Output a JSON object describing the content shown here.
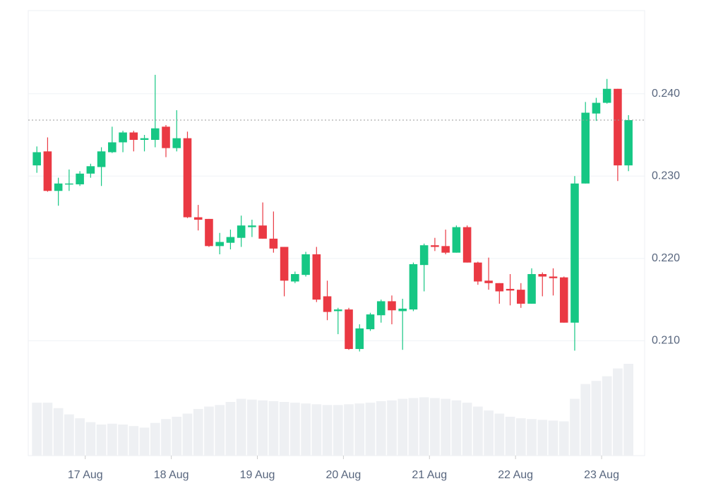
{
  "chart_data": {
    "type": "candlestick",
    "open": [
      0.2313,
      0.233,
      0.2282,
      0.229,
      0.229,
      0.2303,
      0.2311,
      0.2329,
      0.2341,
      0.2353,
      0.2344,
      0.2344,
      0.236,
      0.2334,
      0.2346,
      0.225,
      0.2248,
      0.2215,
      0.2219,
      0.2225,
      0.2238,
      0.224,
      0.2224,
      0.2214,
      0.2172,
      0.218,
      0.2205,
      0.2154,
      0.2136,
      0.2138,
      0.209,
      0.2114,
      0.2131,
      0.2148,
      0.2136,
      0.2138,
      0.2192,
      0.2216,
      0.2215,
      0.2207,
      0.2238,
      0.2195,
      0.2173,
      0.217,
      0.2163,
      0.2162,
      0.2145,
      0.2181,
      0.2178,
      0.2177,
      0.2122,
      0.2291,
      0.2376,
      0.2389,
      0.2406,
      0.2313
    ],
    "high": [
      0.2336,
      0.2347,
      0.2298,
      0.2308,
      0.2306,
      0.2315,
      0.2335,
      0.236,
      0.2355,
      0.2355,
      0.235,
      0.2423,
      0.2362,
      0.238,
      0.2354,
      0.2265,
      0.2248,
      0.2231,
      0.2235,
      0.2252,
      0.2247,
      0.2268,
      0.2257,
      0.2214,
      0.2184,
      0.2208,
      0.2214,
      0.2173,
      0.214,
      0.214,
      0.212,
      0.2134,
      0.215,
      0.2155,
      0.2151,
      0.2195,
      0.2218,
      0.2225,
      0.2235,
      0.224,
      0.224,
      0.2196,
      0.2201,
      0.217,
      0.2181,
      0.217,
      0.2188,
      0.2183,
      0.2188,
      0.2178,
      0.23,
      0.239,
      0.2395,
      0.2418,
      0.2406,
      0.2374
    ],
    "low": [
      0.2304,
      0.2281,
      0.2264,
      0.2282,
      0.2288,
      0.2298,
      0.2288,
      0.2328,
      0.2329,
      0.233,
      0.233,
      0.2335,
      0.2323,
      0.233,
      0.2249,
      0.2234,
      0.2214,
      0.2205,
      0.2211,
      0.2214,
      0.2226,
      0.2224,
      0.2207,
      0.2154,
      0.217,
      0.2178,
      0.2147,
      0.2125,
      0.2108,
      0.2089,
      0.2087,
      0.2112,
      0.2122,
      0.212,
      0.2089,
      0.2136,
      0.216,
      0.2209,
      0.2205,
      0.2207,
      0.2195,
      0.2168,
      0.2162,
      0.2145,
      0.2143,
      0.214,
      0.2145,
      0.2154,
      0.2155,
      0.2122,
      0.2088,
      0.2291,
      0.2367,
      0.2388,
      0.2294,
      0.2306
    ],
    "close": [
      0.2329,
      0.2282,
      0.2291,
      0.2291,
      0.2303,
      0.2312,
      0.233,
      0.2341,
      0.2353,
      0.2344,
      0.2346,
      0.2358,
      0.2334,
      0.2346,
      0.225,
      0.2247,
      0.2215,
      0.222,
      0.2226,
      0.224,
      0.224,
      0.2224,
      0.2212,
      0.2173,
      0.2181,
      0.2205,
      0.215,
      0.2135,
      0.2138,
      0.209,
      0.2115,
      0.2132,
      0.2148,
      0.2137,
      0.2139,
      0.2193,
      0.2216,
      0.2214,
      0.2207,
      0.2238,
      0.2195,
      0.2172,
      0.217,
      0.216,
      0.2161,
      0.2145,
      0.2181,
      0.2178,
      0.2176,
      0.2122,
      0.2291,
      0.2377,
      0.2389,
      0.2406,
      0.2313,
      0.2368
    ],
    "volume": [
      68,
      68,
      61,
      53,
      48,
      43,
      40,
      41,
      40,
      38,
      36,
      42,
      47,
      50,
      54,
      60,
      63,
      65,
      69,
      73,
      72,
      71,
      70,
      69,
      68,
      67,
      66,
      65,
      65,
      66,
      67,
      68,
      70,
      71,
      73,
      74,
      75,
      74,
      73,
      71,
      68,
      63,
      58,
      54,
      50,
      48,
      47,
      46,
      45,
      44,
      73,
      92,
      96,
      102,
      112,
      118
    ],
    "up_color": "#16c784",
    "down_color": "#ea3943",
    "volume_color": "#eef0f3",
    "ylim": [
      0.19605,
      0.2501
    ],
    "yticks": [
      {
        "value": 0.21,
        "label": "0.210"
      },
      {
        "value": 0.22,
        "label": "0.220"
      },
      {
        "value": 0.23,
        "label": "0.230"
      },
      {
        "value": 0.24,
        "label": "0.240"
      }
    ],
    "xlim": [
      -0.8,
      56.5
    ],
    "xticks": [
      {
        "value": 4.5,
        "label": "17 Aug"
      },
      {
        "value": 12.5,
        "label": "18 Aug"
      },
      {
        "value": 20.5,
        "label": "19 Aug"
      },
      {
        "value": 28.5,
        "label": "20 Aug"
      },
      {
        "value": 36.5,
        "label": "21 Aug"
      },
      {
        "value": 44.5,
        "label": "22 Aug"
      },
      {
        "value": 52.5,
        "label": "23 Aug"
      }
    ],
    "grid": true
  }
}
